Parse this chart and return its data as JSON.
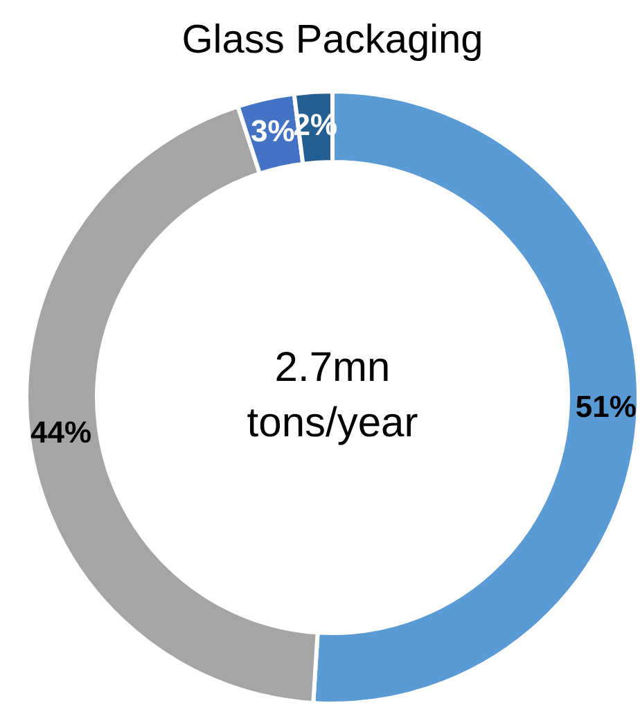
{
  "chart_data": {
    "type": "donut",
    "title": "Glass Packaging",
    "categories": [
      null,
      null,
      null,
      null
    ],
    "values": [
      51,
      44,
      3,
      2
    ],
    "colors": [
      "#5b9bd5",
      "#a5a5a5",
      "#4472c4",
      "#255e91"
    ],
    "value_labels": [
      "51%",
      "44%",
      "3%",
      "2%"
    ],
    "annotations": [
      "2.7mn tons/year"
    ],
    "legend": false
  }
}
